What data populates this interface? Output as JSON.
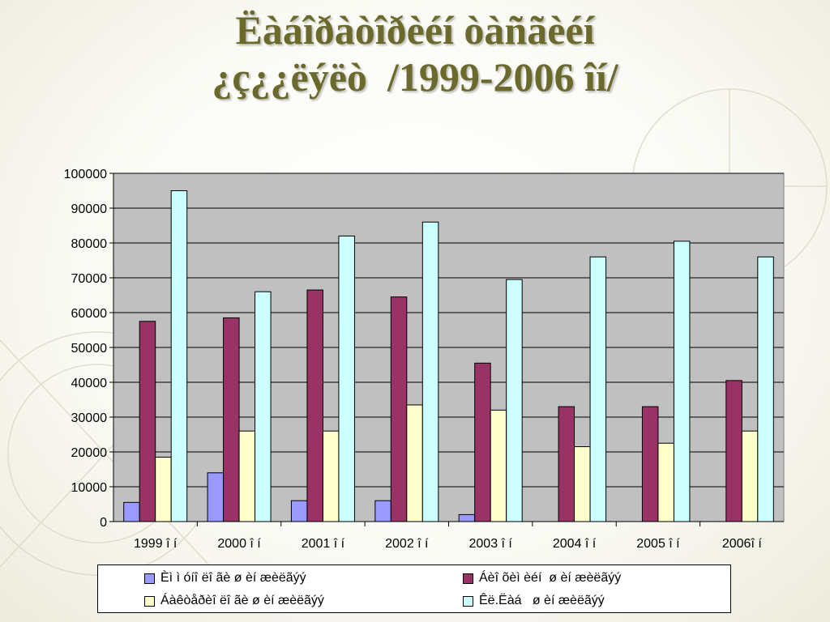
{
  "slide": {
    "title_line1": "Ëàáîðàòîðèéí òàñãèéí",
    "title_line2": "¿ç¿¿ëýëò  /1999-2006 îí/"
  },
  "colors": {
    "title": "#6b6a2c",
    "plot_background": "#c0c0c0"
  },
  "chart_data": {
    "type": "bar",
    "title": "",
    "xlabel": "",
    "ylabel": "",
    "ylim": [
      0,
      100000
    ],
    "yticks": [
      0,
      10000,
      20000,
      30000,
      40000,
      50000,
      60000,
      70000,
      80000,
      90000,
      100000
    ],
    "grid": true,
    "legend_position": "bottom",
    "categories": [
      "1999 î í",
      "2000 î í",
      "2001 î í",
      "2002 î í",
      "2003 î í",
      "2004 î í",
      "2005 î í",
      "2006î í"
    ],
    "series": [
      {
        "name": "Èì ì óíî ëî ãè ø èí æèëãýý",
        "color": "#9999ff",
        "values": [
          5500,
          14000,
          6000,
          6000,
          2000,
          0,
          0,
          0
        ]
      },
      {
        "name": "Áèî õèì èéí  ø èí æèëãýý",
        "color": "#993366",
        "values": [
          57500,
          58500,
          66500,
          64500,
          45500,
          33000,
          33000,
          40500
        ]
      },
      {
        "name": "Áàêòåðèî ëî ãè ø èí æèëãýý",
        "color": "#ffffcc",
        "values": [
          18500,
          26000,
          26000,
          33500,
          32000,
          21500,
          22500,
          26000
        ]
      },
      {
        "name": "Êë.Ëàá   ø èí æèëãýý",
        "color": "#ccffff",
        "values": [
          95000,
          66000,
          82000,
          86000,
          69500,
          76000,
          80500,
          76000
        ]
      }
    ]
  }
}
